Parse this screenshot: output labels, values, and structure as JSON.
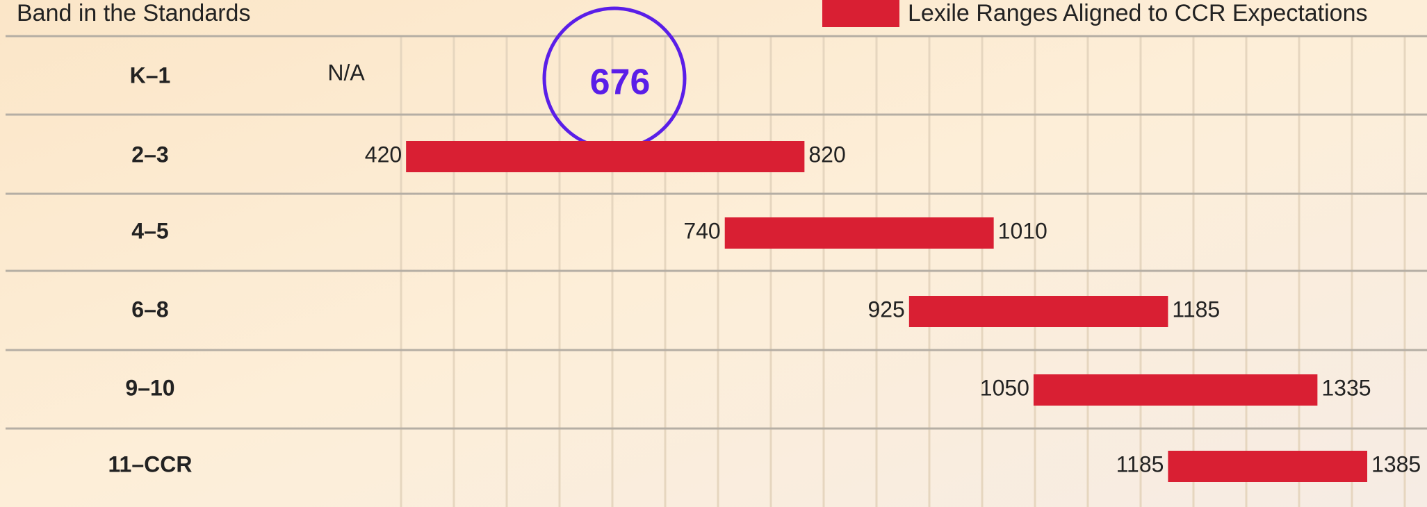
{
  "chart_data": {
    "type": "range-bar",
    "title": "Band in the Standards",
    "categories": [
      "K–1",
      "2–3",
      "4–5",
      "6–8",
      "9–10",
      "11–CCR"
    ],
    "series": [
      {
        "name": "Lexile Ranges Aligned to CCR Expectations",
        "color": "#d91f33",
        "low": [
          null,
          420,
          740,
          925,
          1050,
          1185
        ],
        "high": [
          null,
          820,
          1010,
          1185,
          1335,
          1385
        ],
        "value_labels": [
          "N/A",
          null,
          null,
          null,
          null,
          null
        ]
      }
    ],
    "xlim": [
      415,
      1445
    ],
    "annotation": 676
  }
}
